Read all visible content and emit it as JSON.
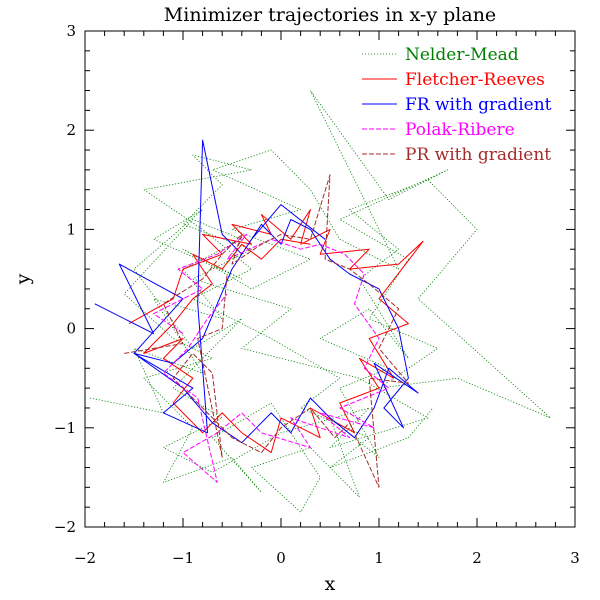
{
  "chart_data": {
    "type": "line",
    "title": "Minimizer trajectories in x-y plane",
    "xlabel": "x",
    "ylabel": "y",
    "xlim": [
      -2,
      3
    ],
    "ylim": [
      -2,
      3
    ],
    "xticks": [
      -2,
      -1,
      0,
      1,
      2,
      3
    ],
    "yticks": [
      -2,
      -1,
      0,
      1,
      2,
      3
    ],
    "x_tick_labels": [
      "−2",
      "−1",
      "0",
      "1",
      "2",
      "3"
    ],
    "y_tick_labels": [
      "−2",
      "−1",
      "0",
      "1",
      "2",
      "3"
    ],
    "grid": false,
    "legend_position": "top-right",
    "series": [
      {
        "name": "Nelder-Mead",
        "color": "#008000",
        "style": "dotted",
        "x": [
          -1.95,
          -1.2,
          -1.5,
          -0.8,
          -1.3,
          -0.6,
          -1.0,
          -0.4,
          -0.9,
          -1.6,
          -1.1,
          -0.7,
          -1.4,
          -0.9,
          -1.2,
          -0.5,
          -0.2,
          -0.7,
          -0.1,
          0.4,
          0.2,
          -0.3,
          0.3,
          0.8,
          0.5,
          1.0,
          0.6,
          1.1,
          0.4,
          0.9,
          1.3,
          0.8,
          1.2,
          0.7,
          1.5,
          2.0,
          1.4,
          2.75,
          1.8,
          1.0,
          1.6,
          0.9,
          1.3,
          0.6,
          1.7,
          1.1,
          0.3,
          1.2,
          0.6,
          0.3,
          -0.1,
          -0.7,
          0.2,
          -0.5,
          0.3,
          -0.3,
          -1.0,
          -0.4,
          -1.3,
          -0.8,
          -1.5,
          -0.9,
          -0.4,
          -1.1,
          -0.6,
          -1.2,
          -0.7,
          0.0,
          0.9,
          0.5,
          1.5,
          0.8,
          -0.4,
          0.1,
          -0.9,
          -0.3,
          -1.0,
          -0.6,
          -0.9,
          -0.3,
          -1.4,
          -0.8,
          -0.3,
          -0.9,
          -0.1,
          0.6,
          0.2,
          0.9,
          0.5,
          1.3,
          1.55
        ],
        "y": [
          -0.7,
          -0.85,
          -0.2,
          -0.45,
          0.3,
          0.1,
          0.6,
          0.9,
          1.1,
          0.35,
          -0.1,
          -0.3,
          -0.5,
          -1.0,
          -1.55,
          -1.3,
          -1.65,
          -1.1,
          -0.75,
          -1.5,
          -1.85,
          -1.4,
          -1.2,
          -1.7,
          -0.9,
          -1.3,
          -0.6,
          -0.4,
          -0.1,
          0.2,
          -0.3,
          0.5,
          0.8,
          1.2,
          1.5,
          1.0,
          0.3,
          -0.9,
          -0.5,
          -0.6,
          -0.2,
          0.1,
          0.7,
          1.1,
          1.6,
          1.3,
          2.4,
          0.6,
          0.9,
          1.4,
          1.8,
          1.6,
          1.2,
          1.0,
          0.7,
          0.4,
          0.8,
          0.5,
          0.9,
          1.2,
          0.6,
          -0.2,
          0.1,
          -0.6,
          -0.9,
          -1.2,
          -1.45,
          -1.05,
          -0.8,
          -1.2,
          -0.9,
          -0.5,
          -0.2,
          0.2,
          0.5,
          0.8,
          1.05,
          1.45,
          1.75,
          1.6,
          1.4,
          1.0,
          0.6,
          0.3,
          -0.1,
          -0.5,
          -0.8,
          -1.1,
          -1.4,
          -1.1,
          -0.8
        ]
      },
      {
        "name": "Fletcher-Reeves",
        "color": "#ff0000",
        "style": "solid",
        "x": [
          -1.55,
          -1.1,
          -1.0,
          -0.6,
          -0.8,
          -0.3,
          -0.5,
          -0.1,
          -0.2,
          0.1,
          0.3,
          0.2,
          0.5,
          0.4,
          0.9,
          0.7,
          1.2,
          1.45,
          1.0,
          1.3,
          0.9,
          1.15,
          0.8,
          1.0,
          0.6,
          0.75,
          0.3,
          0.4,
          0.0,
          -0.1,
          -0.4,
          -0.6,
          -0.8,
          -1.1,
          -0.9,
          -1.2,
          -1.0,
          -1.4,
          -1.1,
          -0.9,
          -0.7,
          -0.9,
          -0.6,
          -0.4,
          -0.2,
          0.0,
          0.3
        ],
        "y": [
          0.05,
          0.3,
          0.6,
          0.75,
          0.95,
          0.85,
          1.05,
          0.95,
          1.15,
          0.9,
          1.2,
          0.85,
          1.0,
          0.75,
          0.8,
          0.6,
          0.65,
          0.88,
          0.3,
          0.05,
          -0.1,
          -0.5,
          -0.3,
          -0.6,
          -0.75,
          -1.05,
          -0.8,
          -1.1,
          -0.9,
          -1.25,
          -1.05,
          -0.85,
          -1.05,
          -0.75,
          -0.5,
          -0.3,
          -0.1,
          -0.25,
          0.05,
          0.3,
          0.45,
          0.75,
          0.6,
          0.85,
          0.7,
          0.9,
          0.85
        ]
      },
      {
        "name": "FR with gradient",
        "color": "#0000ff",
        "style": "solid",
        "x": [
          -1.9,
          -1.3,
          -1.65,
          -1.0,
          -1.5,
          -0.9,
          -1.2,
          -0.75,
          -0.85,
          -0.8,
          -0.6,
          -0.4,
          -0.2,
          0.0,
          0.1,
          0.3,
          0.5,
          0.7,
          1.0,
          1.2,
          1.3,
          1.05,
          1.25,
          0.95,
          1.4,
          1.1,
          0.95,
          0.75,
          0.5,
          0.3,
          0.1,
          -0.1,
          -0.4,
          -0.7,
          -1.0,
          -1.5,
          -1.1,
          -0.8,
          -0.5,
          -0.3,
          0.0,
          0.45
        ],
        "y": [
          0.25,
          -0.05,
          0.65,
          0.3,
          -0.25,
          -0.6,
          -0.85,
          -1.05,
          0.25,
          1.9,
          0.95,
          0.75,
          1.05,
          0.85,
          1.1,
          1.0,
          0.7,
          0.55,
          0.4,
          0.0,
          -0.5,
          -0.8,
          -1.0,
          -0.35,
          -0.65,
          -0.4,
          -0.8,
          -1.1,
          -0.9,
          -0.7,
          -1.05,
          -0.85,
          -1.15,
          -0.95,
          -0.6,
          -0.25,
          -0.35,
          -0.1,
          0.6,
          0.9,
          1.25,
          0.9
        ]
      },
      {
        "name": "Polak-Ribere",
        "color": "#ff00ff",
        "style": "dashed",
        "x": [
          -1.0,
          -1.3,
          -0.8,
          -1.05,
          -0.65,
          -0.35,
          -0.55,
          -0.1,
          0.2,
          0.4,
          0.65,
          0.85,
          0.75,
          1.0,
          0.85,
          1.1,
          0.6,
          0.95,
          0.4,
          0.7,
          0.1,
          0.3,
          -0.2,
          -0.4,
          -0.65,
          -1.0,
          -0.65,
          -0.85,
          -1.2,
          -0.95,
          -0.75,
          -0.55
        ],
        "y": [
          -0.05,
          0.15,
          0.4,
          0.6,
          0.75,
          0.95,
          0.7,
          0.9,
          0.8,
          0.85,
          0.75,
          0.55,
          0.25,
          -0.1,
          -0.4,
          -0.6,
          -0.8,
          -1.0,
          -0.85,
          -1.1,
          -0.9,
          -1.2,
          -1.05,
          -0.85,
          -1.05,
          -1.25,
          -1.55,
          -0.7,
          -0.45,
          -0.2,
          0.1,
          0.35
        ]
      },
      {
        "name": "PR with gradient",
        "color": "#a52a2a",
        "style": "dashed",
        "x": [
          -1.6,
          -1.0,
          -1.2,
          -0.8,
          -0.6,
          -0.4,
          -0.5,
          -0.2,
          0.0,
          0.3,
          0.5,
          0.45,
          0.7,
          0.9,
          1.2,
          1.0,
          1.3,
          0.9,
          1.0,
          0.7,
          0.55,
          0.3,
          0.0,
          -0.2,
          -0.5,
          -0.8,
          -1.1,
          -0.9,
          -0.7,
          -0.6,
          -0.85,
          -0.6,
          -0.55
        ],
        "y": [
          -0.25,
          -0.15,
          0.25,
          0.5,
          0.75,
          0.95,
          0.65,
          0.85,
          0.95,
          0.9,
          1.55,
          0.7,
          0.6,
          0.45,
          0.2,
          -0.2,
          -0.55,
          -0.5,
          -1.6,
          -0.95,
          -1.1,
          -0.8,
          -1.0,
          -1.25,
          -1.1,
          -0.8,
          -0.5,
          -0.25,
          -0.45,
          -1.3,
          -0.1,
          0.0,
          0.55
        ]
      }
    ]
  }
}
